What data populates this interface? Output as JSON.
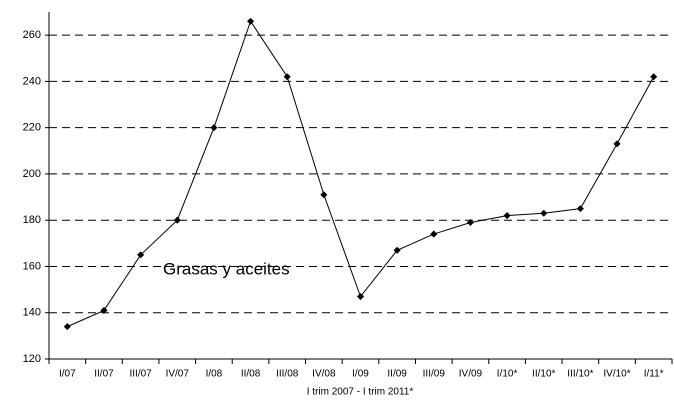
{
  "chart_data": {
    "type": "line",
    "categories": [
      "I/07",
      "II/07",
      "III/07",
      "IV/07",
      "I/08",
      "II/08",
      "III/08",
      "IV/08",
      "I/09",
      "II/09",
      "III/09",
      "IV/09",
      "I/10*",
      "II/10*",
      "III/10*",
      "IV/10*",
      "I/11*"
    ],
    "series": [
      {
        "name": "Grasas y aceites",
        "color": "#000000",
        "values": [
          134,
          141,
          165,
          180,
          220,
          266,
          242,
          191,
          147,
          167,
          174,
          179,
          182,
          183,
          185,
          213,
          242
        ]
      }
    ],
    "xlabel": "I trim 2007 - I trim 2011*",
    "ylim": [
      120,
      270
    ],
    "yticks": [
      120,
      140,
      160,
      180,
      200,
      220,
      240,
      260
    ],
    "grid": true
  }
}
